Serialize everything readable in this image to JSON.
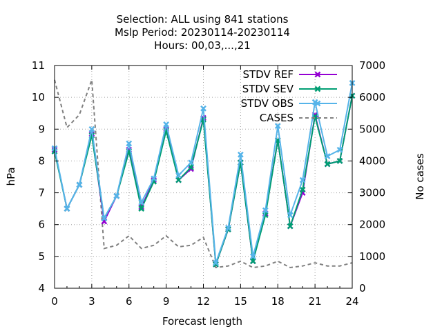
{
  "chart_data": {
    "type": "line",
    "title_lines": [
      "Selection: ALL using   841 stations",
      "Mslp   Period: 20230114-20230114",
      "Hours:  00,03,...,21"
    ],
    "xlabel": "Forecast length",
    "ylabel": "hPa",
    "y2label": "No cases",
    "xlim": [
      0,
      24
    ],
    "ylim": [
      4,
      11
    ],
    "y2lim": [
      0,
      7000
    ],
    "xticks": [
      0,
      3,
      6,
      9,
      12,
      15,
      18,
      21,
      24
    ],
    "yticks": [
      4,
      5,
      6,
      7,
      8,
      9,
      10,
      11
    ],
    "y2ticks": [
      0,
      1000,
      2000,
      3000,
      4000,
      5000,
      6000,
      7000
    ],
    "grid": true,
    "legend_position": "top-right",
    "x": [
      0,
      1,
      2,
      3,
      4,
      5,
      6,
      7,
      8,
      9,
      10,
      11,
      12,
      13,
      14,
      15,
      16,
      17,
      18,
      19,
      20,
      21,
      22,
      23,
      24
    ],
    "series": [
      {
        "name": "STDV REF",
        "axis": "y1",
        "color": "#9400d3",
        "marker": "x",
        "values": [
          8.35,
          6.5,
          7.25,
          8.85,
          6.1,
          6.9,
          8.35,
          6.55,
          7.4,
          9.0,
          7.4,
          7.75,
          9.35,
          4.75,
          5.85,
          7.95,
          4.85,
          6.35,
          8.65,
          5.95,
          7.0,
          9.45,
          7.9,
          8.0,
          10.05
        ]
      },
      {
        "name": "STDV SEV",
        "axis": "y1",
        "color": "#009e73",
        "marker": "x",
        "values": [
          8.3,
          6.5,
          7.25,
          8.8,
          6.2,
          6.9,
          8.3,
          6.5,
          7.35,
          8.95,
          7.4,
          7.8,
          9.3,
          4.75,
          5.85,
          7.95,
          4.85,
          6.3,
          8.65,
          5.95,
          7.1,
          9.4,
          7.9,
          8.0,
          10.05
        ]
      },
      {
        "name": "STDV OBS",
        "axis": "y1",
        "color": "#56b4e9",
        "marker": "x",
        "values": [
          8.4,
          6.5,
          7.25,
          9.0,
          6.2,
          6.9,
          8.55,
          6.7,
          7.45,
          9.15,
          7.55,
          7.95,
          9.65,
          4.8,
          5.9,
          8.2,
          5.0,
          6.45,
          9.1,
          6.3,
          7.4,
          9.85,
          8.15,
          8.35,
          10.45
        ]
      },
      {
        "name": "CASES",
        "axis": "y2",
        "color": "#808080",
        "dash": true,
        "values": [
          6550,
          5050,
          5450,
          6550,
          1250,
          1350,
          1650,
          1250,
          1350,
          1650,
          1300,
          1350,
          1600,
          650,
          700,
          850,
          650,
          700,
          850,
          650,
          700,
          800,
          700,
          700,
          800
        ]
      }
    ]
  }
}
